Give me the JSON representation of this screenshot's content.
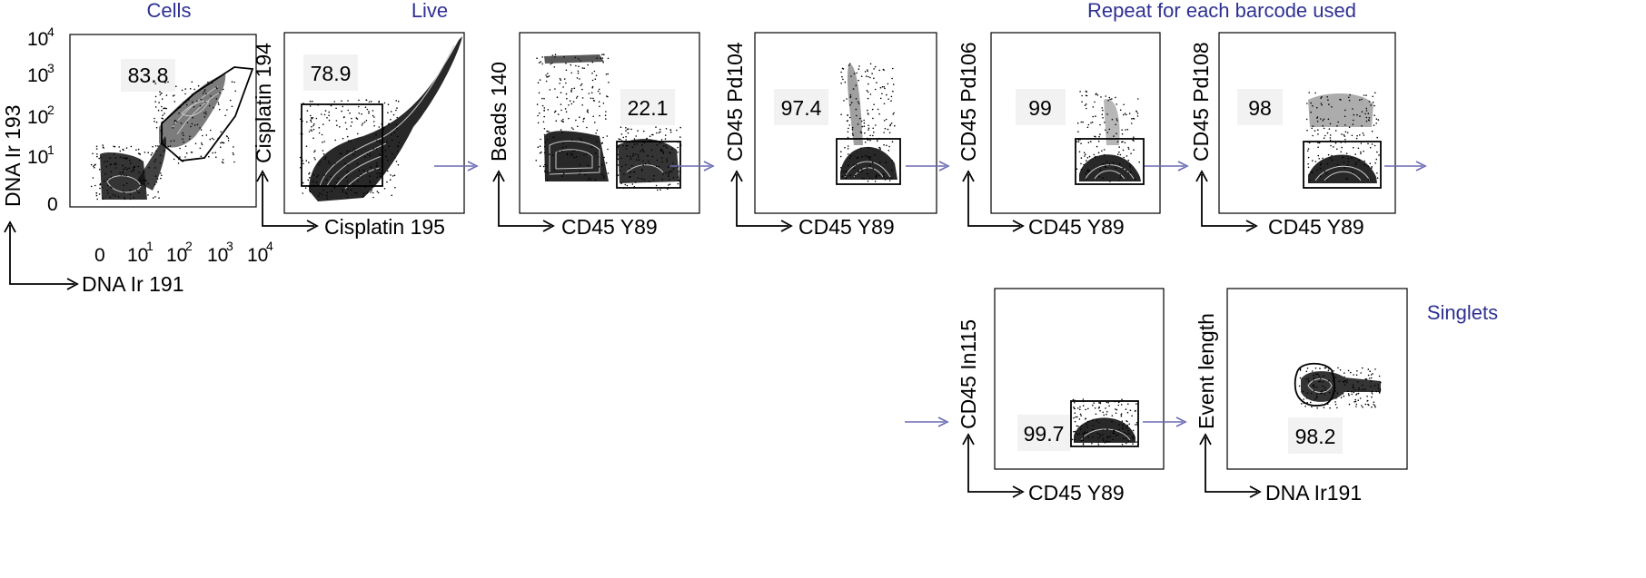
{
  "headers": {
    "cells": "Cells",
    "live": "Live",
    "repeat": "Repeat for each barcode used",
    "singlets": "Singlets"
  },
  "panels": [
    {
      "id": "cells",
      "ylabel": "DNA Ir 193",
      "xlabel": "DNA Ir 191",
      "gate_value": "83.8"
    },
    {
      "id": "live",
      "ylabel": "Cisplatin 194",
      "xlabel": "Cisplatin 195",
      "gate_value": "78.9"
    },
    {
      "id": "beads",
      "ylabel": "Beads 140",
      "xlabel": "CD45 Y89",
      "gate_value": "22.1"
    },
    {
      "id": "pd104",
      "ylabel": "CD45 Pd104",
      "xlabel": "CD45 Y89",
      "gate_value": "97.4"
    },
    {
      "id": "pd106",
      "ylabel": "CD45 Pd106",
      "xlabel": "CD45 Y89",
      "gate_value": "99"
    },
    {
      "id": "pd108",
      "ylabel": "CD45 Pd108",
      "xlabel": "CD45 Y89",
      "gate_value": "98"
    },
    {
      "id": "in115",
      "ylabel": "CD45 In115",
      "xlabel": "CD45 Y89",
      "gate_value": "99.7"
    },
    {
      "id": "singlets",
      "ylabel": "Event length",
      "xlabel": "DNA Ir191",
      "gate_value": "98.2"
    }
  ],
  "cells_ticks": {
    "y": [
      {
        "base": "10",
        "exp": "4"
      },
      {
        "base": "10",
        "exp": "3"
      },
      {
        "base": "10",
        "exp": "2"
      },
      {
        "base": "10",
        "exp": "1"
      },
      {
        "base": "0",
        "exp": ""
      }
    ],
    "x": [
      {
        "base": "0",
        "exp": ""
      },
      {
        "base": "10",
        "exp": "1"
      },
      {
        "base": "10",
        "exp": "2"
      },
      {
        "base": "10",
        "exp": "3"
      },
      {
        "base": "10",
        "exp": "4"
      }
    ]
  },
  "colors": {
    "header": "#2e3192",
    "flow_arrow": "#6b6bb4",
    "value_box": "#f2f2f2"
  }
}
